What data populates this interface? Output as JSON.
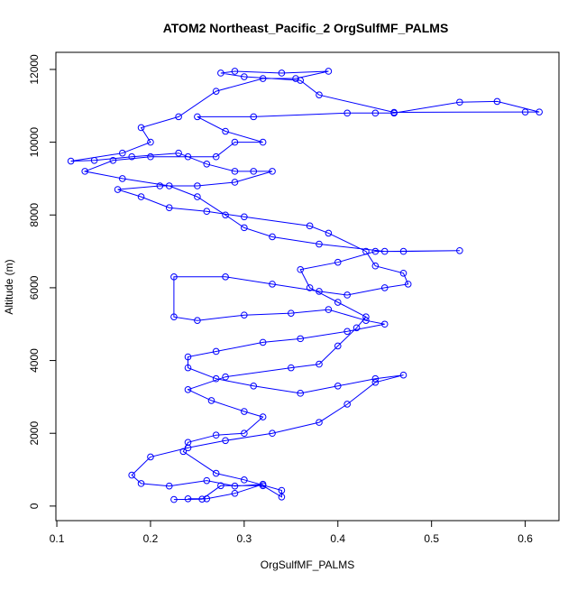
{
  "chart_data": {
    "type": "line",
    "title": "ATOM2 Northeast_Pacific_2 OrgSulfMF_PALMS",
    "x_label": "OrgSulfMF_PALMS",
    "y_label": "Altitude (m)",
    "color": "#0000ff",
    "xlim": [
      0.099,
      0.636
    ],
    "ylim": [
      -400,
      12470
    ],
    "xticks": [
      0.1,
      0.2,
      0.3,
      0.4,
      0.5,
      0.6
    ],
    "yticks": [
      0,
      2000,
      4000,
      6000,
      8000,
      10000,
      12000
    ],
    "x": [
      0.225,
      0.255,
      0.275,
      0.32,
      0.34,
      0.34,
      0.3,
      0.27,
      0.235,
      0.24,
      0.27,
      0.3,
      0.32,
      0.3,
      0.265,
      0.24,
      0.28,
      0.35,
      0.38,
      0.4,
      0.42,
      0.43,
      0.4,
      0.37,
      0.36,
      0.4,
      0.44,
      0.47,
      0.53,
      0.45,
      0.38,
      0.33,
      0.3,
      0.28,
      0.25,
      0.22,
      0.17,
      0.13,
      0.16,
      0.2,
      0.24,
      0.27,
      0.29,
      0.32,
      0.28,
      0.25,
      0.31,
      0.41,
      0.44,
      0.46,
      0.53,
      0.57,
      0.615,
      0.6,
      0.46,
      0.38,
      0.36,
      0.3,
      0.275,
      0.29,
      0.34,
      0.39,
      0.355,
      0.32,
      0.27,
      0.23,
      0.19,
      0.2,
      0.17,
      0.115,
      0.14,
      0.18,
      0.23,
      0.26,
      0.29,
      0.31,
      0.33,
      0.29,
      0.25,
      0.21,
      0.165,
      0.19,
      0.22,
      0.26,
      0.3,
      0.37,
      0.39,
      0.43,
      0.44,
      0.47,
      0.475,
      0.45,
      0.41,
      0.38,
      0.33,
      0.28,
      0.225,
      0.225,
      0.25,
      0.3,
      0.35,
      0.39,
      0.43,
      0.45,
      0.41,
      0.36,
      0.32,
      0.27,
      0.24,
      0.24,
      0.27,
      0.31,
      0.36,
      0.4,
      0.44,
      0.47,
      0.44,
      0.41,
      0.38,
      0.33,
      0.28,
      0.24,
      0.2,
      0.18,
      0.19,
      0.22,
      0.26,
      0.29,
      0.32,
      0.29,
      0.26,
      0.24
    ],
    "values": [
      180,
      190,
      560,
      560,
      250,
      430,
      720,
      900,
      1500,
      1750,
      1950,
      2000,
      2450,
      2600,
      2900,
      3200,
      3550,
      3800,
      3900,
      4400,
      4900,
      5200,
      5600,
      6000,
      6500,
      6700,
      7000,
      7000,
      7020,
      7000,
      7200,
      7400,
      7650,
      8000,
      8500,
      8800,
      9000,
      9200,
      9500,
      9600,
      9600,
      9600,
      10000,
      10000,
      10300,
      10700,
      10700,
      10800,
      10800,
      10800,
      11100,
      11120,
      10830,
      10830,
      10820,
      11300,
      11700,
      11800,
      11900,
      11950,
      11900,
      11950,
      11750,
      11750,
      11400,
      10700,
      10400,
      10000,
      9700,
      9480,
      9500,
      9600,
      9700,
      9400,
      9200,
      9200,
      9200,
      8900,
      8800,
      8800,
      8700,
      8500,
      8200,
      8100,
      7950,
      7700,
      7500,
      7000,
      6600,
      6400,
      6100,
      6000,
      5800,
      5900,
      6100,
      6300,
      6300,
      5200,
      5100,
      5250,
      5300,
      5400,
      5100,
      5000,
      4800,
      4600,
      4500,
      4250,
      4100,
      3800,
      3500,
      3300,
      3100,
      3300,
      3500,
      3600,
      3400,
      2800,
      2300,
      2000,
      1800,
      1600,
      1350,
      850,
      620,
      550,
      700,
      550,
      600,
      350,
      200,
      200
    ]
  }
}
